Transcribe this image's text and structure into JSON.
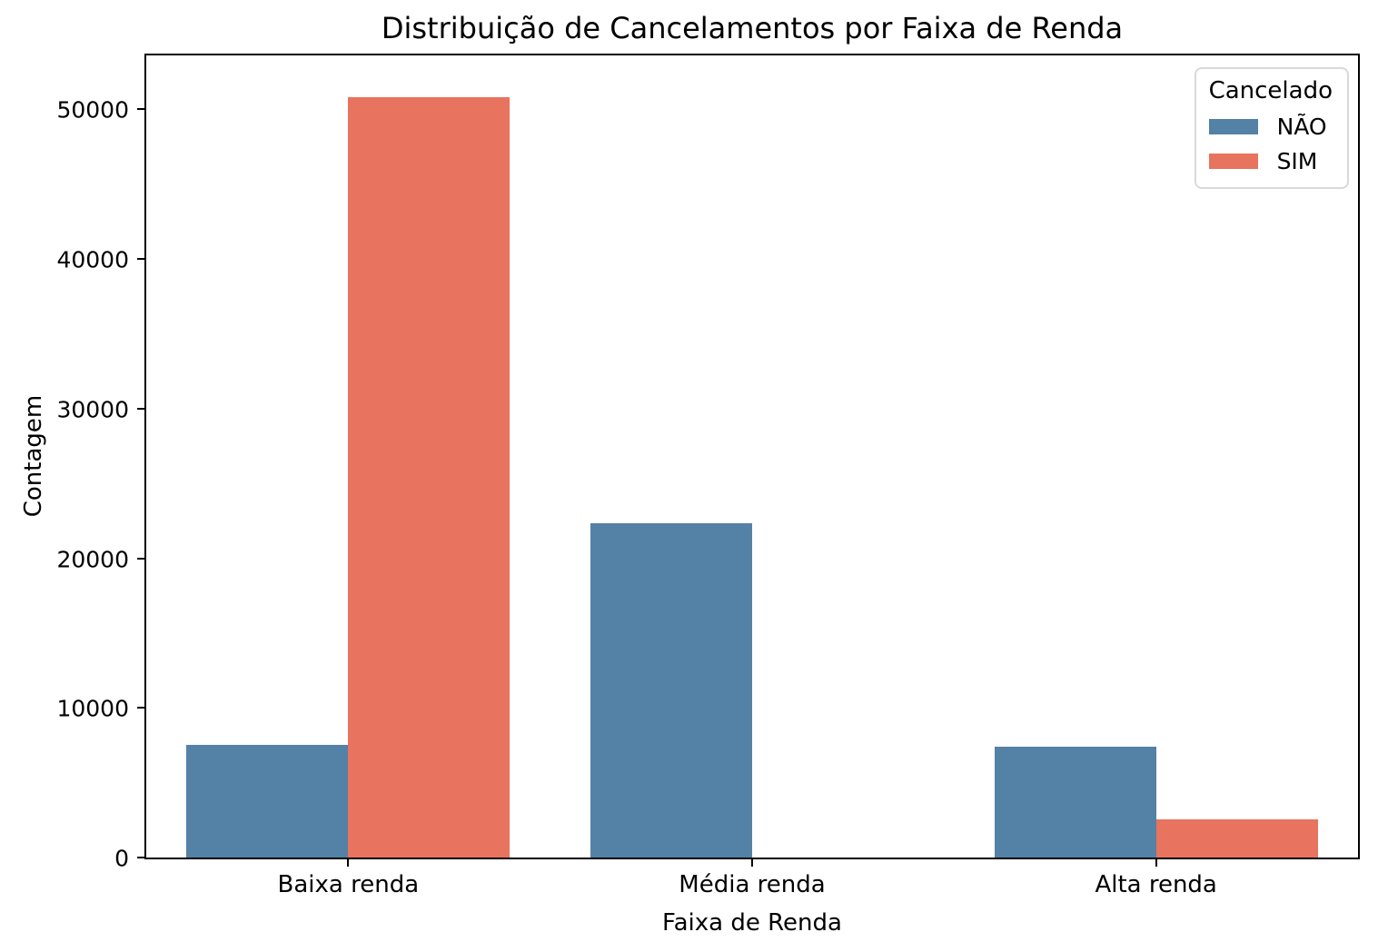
{
  "chart_data": {
    "type": "bar",
    "title": "Distribuição de Cancelamentos por Faixa de Renda",
    "xlabel": "Faixa de Renda",
    "ylabel": "Contagem",
    "categories": [
      "Baixa renda",
      "Média renda",
      "Alta renda"
    ],
    "series": [
      {
        "name": "NÃO",
        "color": "#5481A6",
        "values": [
          7550,
          22350,
          7400
        ]
      },
      {
        "name": "SIM",
        "color": "#E8735E",
        "values": [
          50800,
          0,
          2550
        ]
      }
    ],
    "yticks": [
      0,
      10000,
      20000,
      30000,
      40000,
      50000
    ],
    "ylim": [
      0,
      53600
    ],
    "bar_group_width": 0.8,
    "grid": false,
    "legend": {
      "title": "Cancelado",
      "position": "upper right"
    },
    "colors": {
      "nao_bar": "#5481A6",
      "sim_bar": "#E8735E",
      "spine": "#000000",
      "background": "#ffffff",
      "legend_border": "#d9d9d9"
    }
  }
}
